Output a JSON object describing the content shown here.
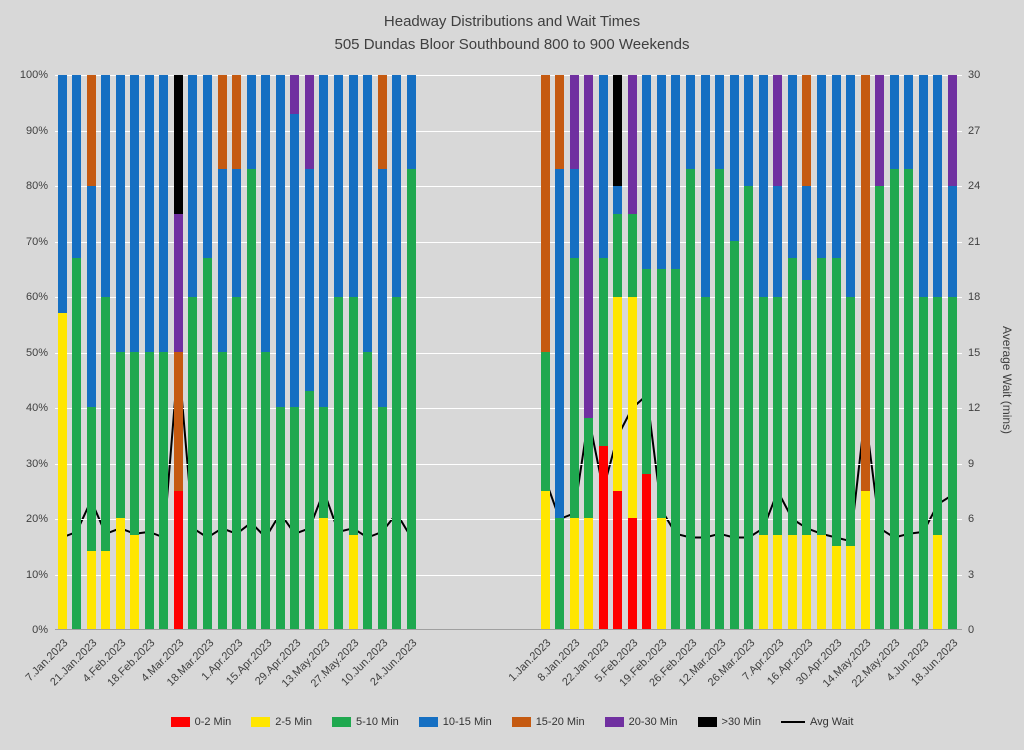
{
  "title": {
    "line1": "Headway Distributions and Wait Times",
    "line2": "505 Dundas  Bloor Southbound 800 to 900 Weekends"
  },
  "colors": {
    "0-2": "#ff0000",
    "2-5": "#ffe600",
    "5-10": "#1fa84f",
    "10-15": "#156fc2",
    "15-20": "#c55a11",
    "20-30": "#7030a0",
    ">30": "#000000",
    "avg_line": "#000000"
  },
  "legend": [
    {
      "key": "0-2",
      "label": "0-2 Min",
      "style": "swatch"
    },
    {
      "key": "2-5",
      "label": "2-5 Min",
      "style": "swatch"
    },
    {
      "key": "5-10",
      "label": "5-10 Min",
      "style": "swatch"
    },
    {
      "key": "10-15",
      "label": "10-15 Min",
      "style": "swatch"
    },
    {
      "key": "15-20",
      "label": "15-20 Min",
      "style": "swatch"
    },
    {
      "key": "20-30",
      "label": "20-30 Min",
      "style": "swatch"
    },
    {
      "key": ">30",
      "label": ">30 Min",
      "style": "swatch"
    },
    {
      "key": "avg_line",
      "label": "Avg Wait",
      "style": "line"
    }
  ],
  "chart_data": {
    "type": "bar",
    "subtype": "100pct-stacked-columns-with-line-overlay",
    "stack_order": [
      "0-2",
      "2-5",
      "5-10",
      "10-15",
      "15-20",
      "20-30",
      ">30"
    ],
    "line_series_name": "Avg Wait",
    "y_axis_left": {
      "min": 0,
      "max": 100,
      "grid": true,
      "ticks": [
        "100%",
        "90%",
        "80%",
        "70%",
        "60%",
        "50%",
        "40%",
        "30%",
        "20%",
        "10%",
        "0%"
      ]
    },
    "y_axis_right": {
      "title": "Average Wait (mins)",
      "min": 0,
      "max": 30,
      "ticks": [
        "30",
        "27",
        "24",
        "21",
        "18",
        "15",
        "12",
        "9",
        "6",
        "3",
        "0"
      ]
    },
    "groups": [
      {
        "name": "left-panel",
        "bars": [
          {
            "label": "7.Jan.2023",
            "seg": {
              "2-5": 57,
              "10-15": 43
            },
            "avg": 5
          },
          {
            "seg": {
              "5-10": 67,
              "10-15": 33
            },
            "avg": 5.3
          },
          {
            "label": "21.Jan.2023",
            "seg": {
              "2-5": 14,
              "5-10": 26,
              "10-15": 40,
              "15-20": 20
            },
            "avg": 7
          },
          {
            "seg": {
              "2-5": 14,
              "5-10": 46,
              "10-15": 40
            },
            "avg": 5.2
          },
          {
            "label": "4.Feb.2023",
            "seg": {
              "2-5": 20,
              "5-10": 30,
              "10-15": 50
            },
            "avg": 5.5
          },
          {
            "seg": {
              "2-5": 17,
              "5-10": 33,
              "10-15": 50
            },
            "avg": 5.2
          },
          {
            "label": "18.Feb.2023",
            "seg": {
              "5-10": 50,
              "10-15": 50
            },
            "avg": 5.3
          },
          {
            "seg": {
              "5-10": 50,
              "10-15": 50
            },
            "avg": 5
          },
          {
            "label": "4.Mar.2023",
            "seg": {
              "0-2": 25,
              "15-20": 25,
              "20-30": 25,
              ">30": 25
            },
            "avg": 14.7
          },
          {
            "seg": {
              "5-10": 60,
              "10-15": 40
            },
            "avg": 5.5
          },
          {
            "label": "18.Mar.2023",
            "seg": {
              "5-10": 67,
              "10-15": 33
            },
            "avg": 5
          },
          {
            "seg": {
              "5-10": 50,
              "10-15": 33,
              "15-20": 17
            },
            "avg": 5.5
          },
          {
            "label": "1.Apr.2023",
            "seg": {
              "5-10": 60,
              "10-15": 23,
              "15-20": 17
            },
            "avg": 5.2
          },
          {
            "seg": {
              "5-10": 83,
              "10-15": 17
            },
            "avg": 5.8
          },
          {
            "label": "15.Apr.2023",
            "seg": {
              "5-10": 50,
              "10-15": 50
            },
            "avg": 5
          },
          {
            "seg": {
              "5-10": 40,
              "10-15": 60
            },
            "avg": 6.3
          },
          {
            "label": "29.Apr.2023",
            "seg": {
              "5-10": 40,
              "10-15": 53,
              "20-30": 7
            },
            "avg": 5.2
          },
          {
            "seg": {
              "5-10": 43,
              "10-15": 40,
              "20-30": 17
            },
            "avg": 5.5
          },
          {
            "label": "13.May.2023",
            "seg": {
              "2-5": 20,
              "5-10": 20,
              "10-15": 60
            },
            "avg": 7.5
          },
          {
            "seg": {
              "5-10": 60,
              "10-15": 40
            },
            "avg": 5.3
          },
          {
            "label": "27.May.2023",
            "seg": {
              "2-5": 17,
              "5-10": 43,
              "10-15": 40
            },
            "avg": 5.5
          },
          {
            "seg": {
              "5-10": 50,
              "10-15": 50
            },
            "avg": 5
          },
          {
            "label": "10.Jun.2023",
            "seg": {
              "5-10": 40,
              "10-15": 43,
              "15-20": 17
            },
            "avg": 5.3
          },
          {
            "seg": {
              "5-10": 60,
              "10-15": 40
            },
            "avg": 6.3
          },
          {
            "label": "24.Jun.2023",
            "seg": {
              "5-10": 83,
              "10-15": 17
            },
            "avg": 5
          }
        ]
      },
      {
        "name": "right-panel",
        "bars": [
          {
            "label": "1.Jan.2023",
            "seg": {
              "2-5": 25,
              "5-10": 25,
              "15-20": 50
            },
            "avg": 8.2
          },
          {
            "seg": {
              "5-10": 20,
              "10-15": 63,
              "15-20": 17
            },
            "avg": 6
          },
          {
            "label": "8.Jan.2023",
            "seg": {
              "2-5": 20,
              "5-10": 47,
              "10-15": 16,
              "20-30": 17
            },
            "avg": 6.3
          },
          {
            "seg": {
              "2-5": 20,
              "5-10": 18,
              "20-30": 62
            },
            "avg": 11.5
          },
          {
            "label": "22.Jan.2023",
            "seg": {
              "0-2": 33,
              "5-10": 34,
              "10-15": 33
            },
            "avg": 7.6
          },
          {
            "seg": {
              "0-2": 25,
              "2-5": 35,
              "5-10": 15,
              "10-15": 5,
              ">30": 20
            },
            "avg": 10.5
          },
          {
            "label": "5.Feb.2023",
            "seg": {
              "0-2": 20,
              "2-5": 40,
              "5-10": 15,
              "20-30": 25
            },
            "avg": 12
          },
          {
            "seg": {
              "0-2": 28,
              "5-10": 37,
              "10-15": 35
            },
            "avg": 12.7
          },
          {
            "label": "19.Feb.2023",
            "seg": {
              "2-5": 20,
              "5-10": 45,
              "10-15": 35
            },
            "avg": 6.5
          },
          {
            "seg": {
              "5-10": 65,
              "10-15": 35
            },
            "avg": 5.2
          },
          {
            "label": "26.Feb.2023",
            "seg": {
              "5-10": 83,
              "10-15": 17
            },
            "avg": 5
          },
          {
            "seg": {
              "5-10": 60,
              "10-15": 40
            },
            "avg": 5
          },
          {
            "label": "12.Mar.2023",
            "seg": {
              "5-10": 83,
              "10-15": 17
            },
            "avg": 5.2
          },
          {
            "seg": {
              "5-10": 70,
              "10-15": 30
            },
            "avg": 5
          },
          {
            "label": "26.Mar.2023",
            "seg": {
              "5-10": 80,
              "10-15": 20
            },
            "avg": 5
          },
          {
            "seg": {
              "2-5": 17,
              "5-10": 43,
              "10-15": 40
            },
            "avg": 5.5
          },
          {
            "label": "7.Apr.2023",
            "seg": {
              "2-5": 17,
              "5-10": 43,
              "10-15": 20,
              "20-30": 20
            },
            "avg": 7.5
          },
          {
            "seg": {
              "2-5": 17,
              "5-10": 50,
              "10-15": 33
            },
            "avg": 6
          },
          {
            "label": "16.Apr.2023",
            "seg": {
              "2-5": 17,
              "5-10": 46,
              "10-15": 17,
              "15-20": 20
            },
            "avg": 5.5
          },
          {
            "seg": {
              "2-5": 17,
              "5-10": 50,
              "10-15": 33
            },
            "avg": 5.2
          },
          {
            "label": "30.Apr.2023",
            "seg": {
              "2-5": 15,
              "5-10": 52,
              "10-15": 33
            },
            "avg": 5
          },
          {
            "seg": {
              "2-5": 15,
              "5-10": 45,
              "10-15": 40
            },
            "avg": 4.8
          },
          {
            "label": "14.May.2023",
            "seg": {
              "2-5": 25,
              "15-20": 75
            },
            "avg": 11.7
          },
          {
            "seg": {
              "5-10": 80,
              "20-30": 20
            },
            "avg": 5.5
          },
          {
            "label": "22.May.2023",
            "seg": {
              "5-10": 83,
              "10-15": 17
            },
            "avg": 5
          },
          {
            "seg": {
              "5-10": 83,
              "10-15": 17
            },
            "avg": 5.2
          },
          {
            "label": "4.Jun.2023",
            "seg": {
              "5-10": 60,
              "10-15": 40
            },
            "avg": 5.3
          },
          {
            "seg": {
              "2-5": 17,
              "5-10": 43,
              "10-15": 40
            },
            "avg": 6.8
          },
          {
            "label": "18.Jun.2023",
            "seg": {
              "5-10": 60,
              "10-15": 20,
              "20-30": 20
            },
            "avg": 7.3
          }
        ]
      }
    ]
  }
}
